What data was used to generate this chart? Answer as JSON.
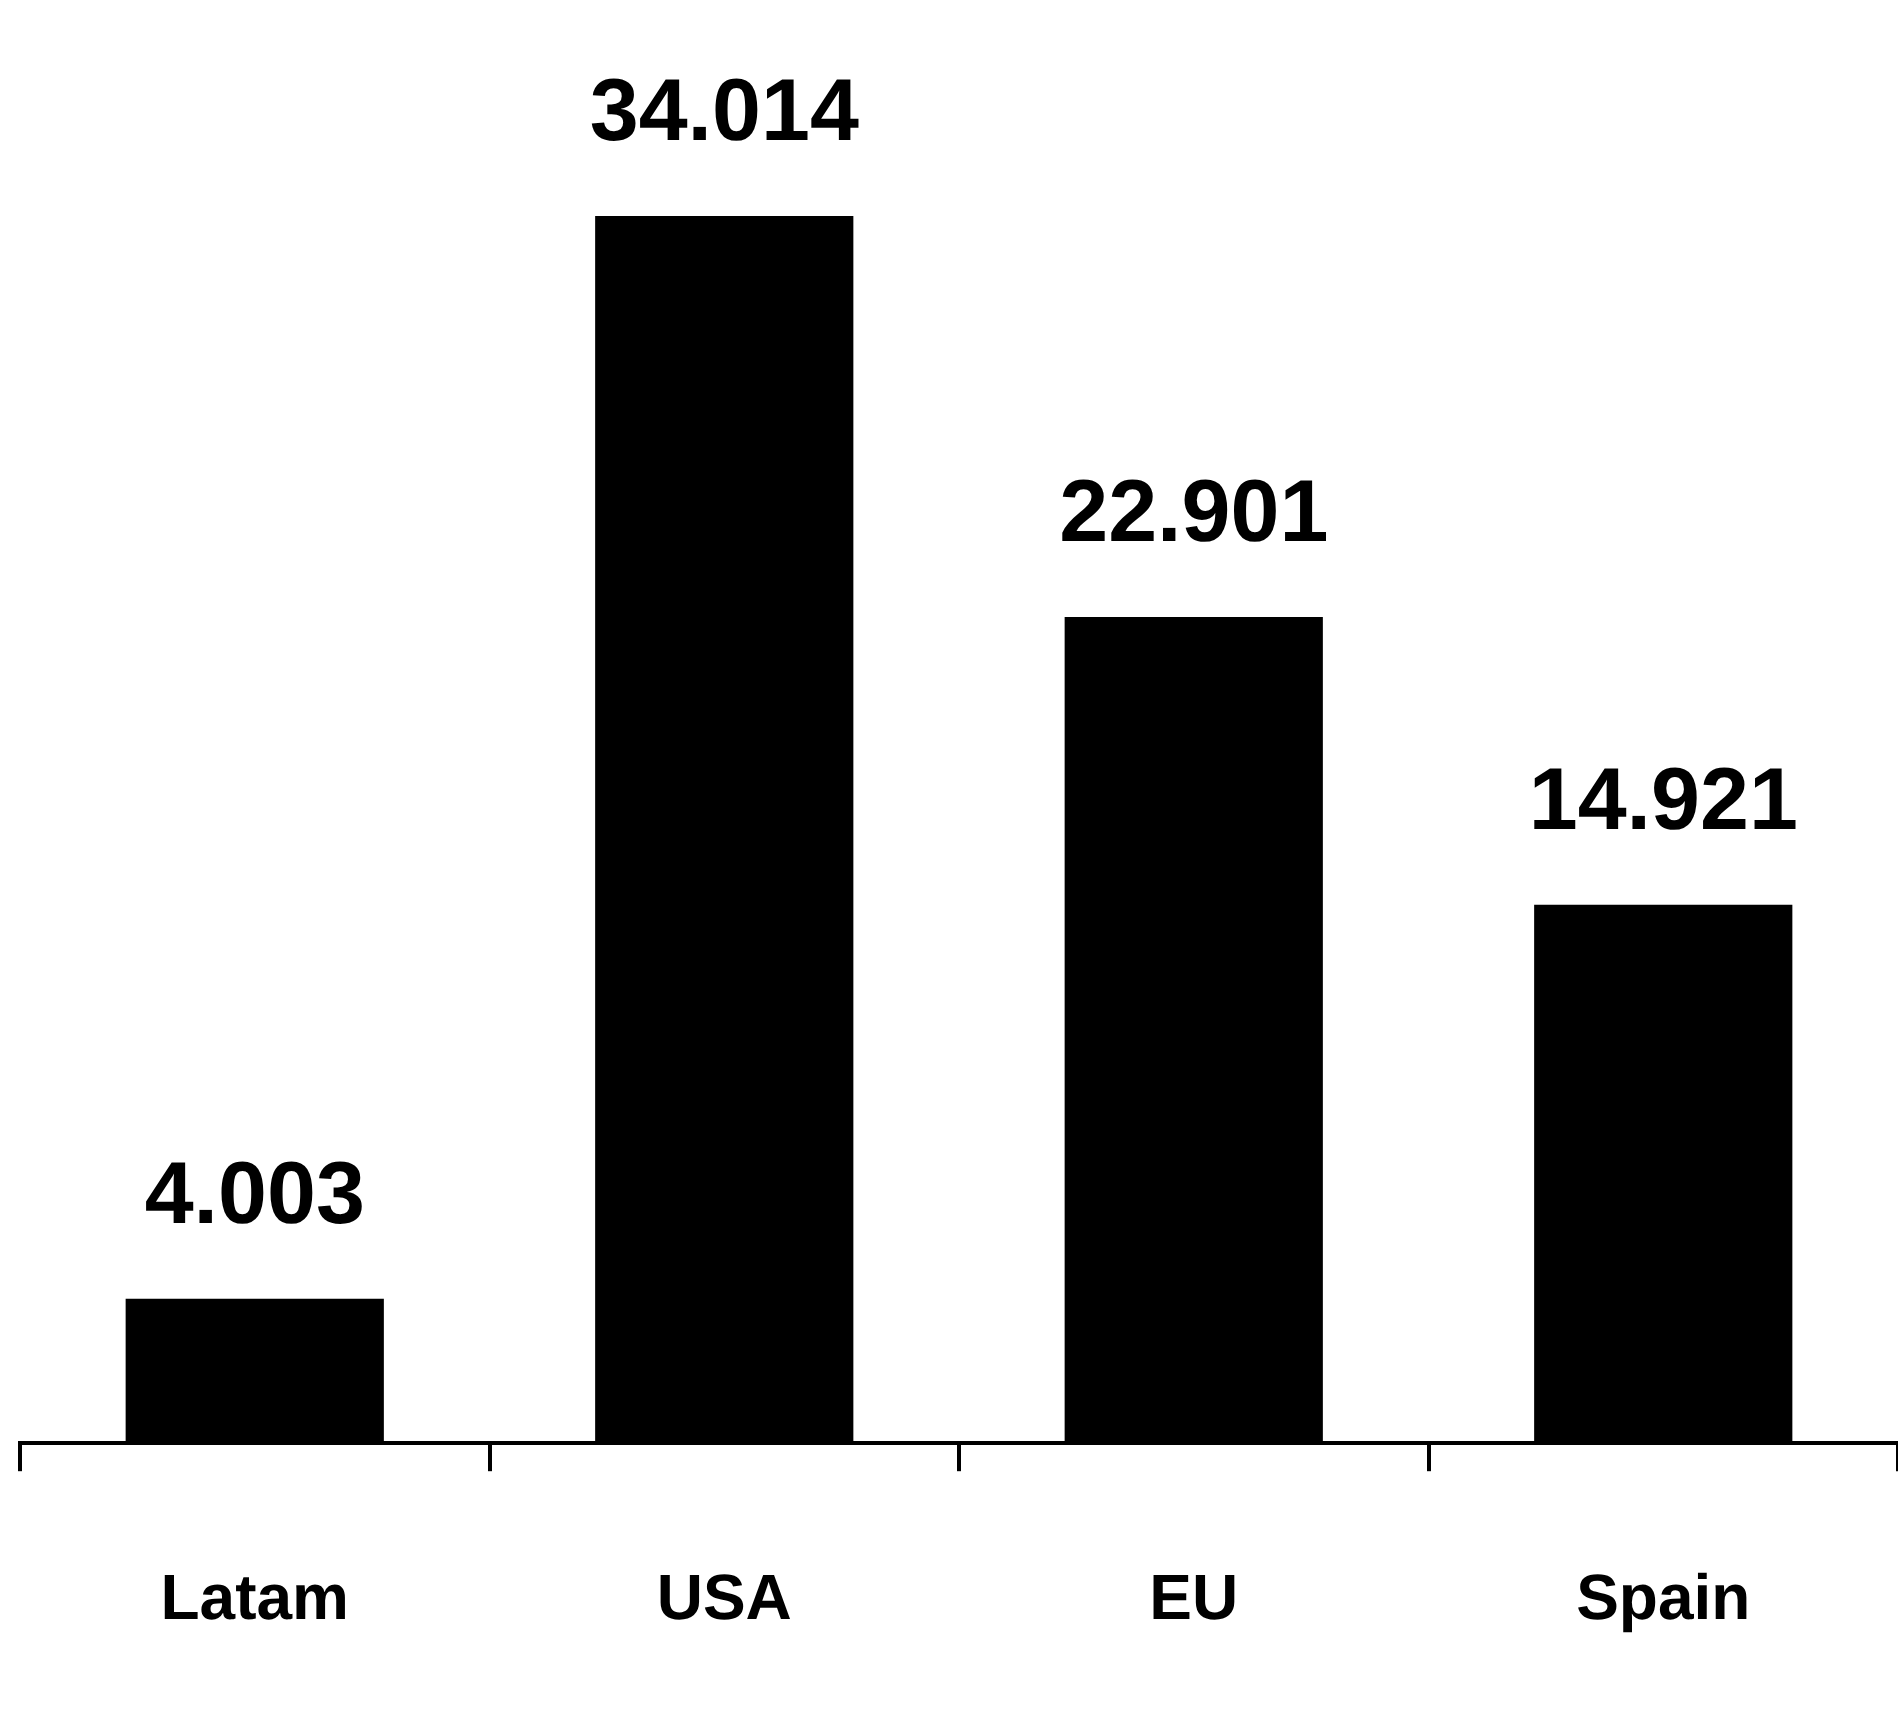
{
  "chart_data": {
    "type": "bar",
    "categories": [
      "Latam",
      "USA",
      "EU",
      "Spain"
    ],
    "values": [
      4.003,
      34.014,
      22.901,
      14.921
    ],
    "color": "#000000",
    "data_labels": true
  }
}
